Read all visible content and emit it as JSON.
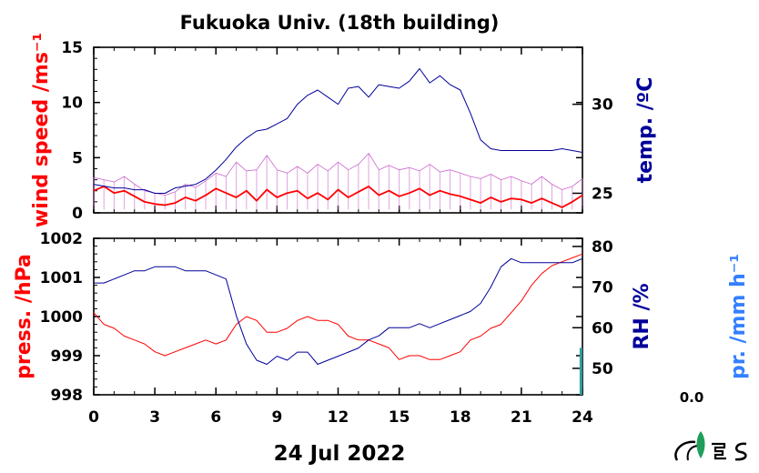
{
  "title": "Fukuoka Univ. (18th building)",
  "date_label": "24 Jul 2022",
  "pr_value": "0.0",
  "colors": {
    "wind_gust": "#cc66cc",
    "wind_mean": "#ff0000",
    "temp": "#000099",
    "press": "#ff0000",
    "rh": "#000099",
    "pr": "#3380ff",
    "rain_bar": "#2aa3a3"
  },
  "chart_data": [
    {
      "type": "line",
      "ylabel": "wind speed /ms⁻¹",
      "y2label": "temp. /ºC",
      "xlim": [
        0,
        24
      ],
      "ylim": [
        0,
        15
      ],
      "y2lim": [
        23.9,
        33.2
      ],
      "xticks": [
        "0",
        "3",
        "6",
        "9",
        "12",
        "15",
        "18",
        "21",
        "24"
      ],
      "yticks": [
        "0",
        "5",
        "10",
        "15"
      ],
      "y2ticks": [
        "25",
        "30"
      ],
      "series": [
        {
          "role": "wind_gust",
          "x": [
            0,
            0.5,
            1,
            1.5,
            2,
            2.5,
            3,
            3.5,
            4,
            4.5,
            5,
            5.5,
            6,
            6.5,
            7,
            7.5,
            8,
            8.5,
            9,
            9.5,
            10,
            10.5,
            11,
            11.5,
            12,
            12.5,
            13,
            13.5,
            14,
            14.5,
            15,
            15.5,
            16,
            16.5,
            17,
            17.5,
            18,
            18.5,
            19,
            19.5,
            20,
            20.5,
            21,
            21.5,
            22,
            22.5,
            23,
            23.5,
            24
          ],
          "values": [
            3.2,
            3.0,
            2.8,
            3.3,
            2.6,
            2.0,
            1.8,
            1.6,
            1.9,
            2.6,
            2.3,
            2.9,
            3.6,
            3.3,
            4.6,
            3.8,
            3.9,
            5.2,
            3.9,
            3.6,
            4.2,
            3.6,
            4.4,
            3.8,
            4.6,
            3.9,
            4.4,
            5.4,
            3.9,
            4.3,
            3.9,
            4.1,
            3.8,
            4.4,
            3.7,
            3.9,
            3.6,
            3.3,
            3.1,
            3.5,
            3.0,
            3.3,
            2.9,
            2.6,
            3.3,
            2.6,
            2.1,
            2.4,
            3.1
          ]
        },
        {
          "role": "wind_mean",
          "x": [
            0,
            0.5,
            1,
            1.5,
            2,
            2.5,
            3,
            3.5,
            4,
            4.5,
            5,
            5.5,
            6,
            6.5,
            7,
            7.5,
            8,
            8.5,
            9,
            9.5,
            10,
            10.5,
            11,
            11.5,
            12,
            12.5,
            13,
            13.5,
            14,
            14.5,
            15,
            15.5,
            16,
            16.5,
            17,
            17.5,
            18,
            18.5,
            19,
            19.5,
            20,
            20.5,
            21,
            21.5,
            22,
            22.5,
            23,
            23.5,
            24
          ],
          "values": [
            2.0,
            2.4,
            1.8,
            2.0,
            1.5,
            1.0,
            0.8,
            0.7,
            0.9,
            1.4,
            1.1,
            1.6,
            2.2,
            1.8,
            1.4,
            2.0,
            1.1,
            2.1,
            1.4,
            1.8,
            2.0,
            1.3,
            1.8,
            1.2,
            2.1,
            1.4,
            1.9,
            2.4,
            1.6,
            2.0,
            1.5,
            1.8,
            2.2,
            1.6,
            2.0,
            1.7,
            1.5,
            1.2,
            0.9,
            1.4,
            1.0,
            1.3,
            1.2,
            0.9,
            1.3,
            0.9,
            0.5,
            1.0,
            1.6
          ]
        },
        {
          "role": "temp",
          "axis": "right",
          "x": [
            0,
            0.5,
            1,
            1.5,
            2,
            2.5,
            3,
            3.5,
            4,
            4.5,
            5,
            5.5,
            6,
            6.5,
            7,
            7.5,
            8,
            8.5,
            9,
            9.5,
            10,
            10.5,
            11,
            11.5,
            12,
            12.5,
            13,
            13.5,
            14,
            14.5,
            15,
            15.5,
            16,
            16.5,
            17,
            17.5,
            18,
            18.5,
            19,
            19.5,
            20,
            20.5,
            21,
            21.5,
            22,
            22.5,
            23,
            23.5,
            24
          ],
          "values": [
            25.5,
            25.4,
            25.3,
            25.3,
            25.2,
            25.2,
            25.0,
            25.0,
            25.3,
            25.4,
            25.5,
            25.8,
            26.3,
            26.9,
            27.6,
            28.1,
            28.5,
            28.6,
            28.9,
            29.2,
            30.0,
            30.5,
            30.8,
            30.4,
            30.0,
            30.9,
            31.0,
            30.4,
            31.1,
            31.0,
            30.9,
            31.3,
            32.0,
            31.2,
            31.6,
            31.1,
            30.8,
            29.5,
            28.0,
            27.5,
            27.4,
            27.4,
            27.4,
            27.4,
            27.4,
            27.4,
            27.5,
            27.4,
            27.3
          ]
        }
      ]
    },
    {
      "type": "line",
      "ylabel": "press. /hPa",
      "y2label": "RH /%",
      "y3label": "pr. /mm h⁻¹",
      "xlabel": "24 Jul 2022",
      "xlim": [
        0,
        24
      ],
      "ylim": [
        998,
        1002
      ],
      "y2lim": [
        43.5,
        82
      ],
      "xticks": [
        "0",
        "3",
        "6",
        "9",
        "12",
        "15",
        "18",
        "21",
        "24"
      ],
      "yticks": [
        "998",
        "999",
        "1000",
        "1001",
        "1002"
      ],
      "y2ticks": [
        "50",
        "60",
        "70",
        "80"
      ],
      "series": [
        {
          "role": "press",
          "x": [
            0,
            0.5,
            1,
            1.5,
            2,
            2.5,
            3,
            3.5,
            4,
            4.5,
            5,
            5.5,
            6,
            6.5,
            7,
            7.5,
            8,
            8.5,
            9,
            9.5,
            10,
            10.5,
            11,
            11.5,
            12,
            12.5,
            13,
            13.5,
            14,
            14.5,
            15,
            15.5,
            16,
            16.5,
            17,
            17.5,
            18,
            18.5,
            19,
            19.5,
            20,
            20.5,
            21,
            21.5,
            22,
            22.5,
            23,
            23.5,
            24
          ],
          "values": [
            1000.1,
            999.8,
            999.7,
            999.5,
            999.4,
            999.3,
            999.1,
            999.0,
            999.1,
            999.2,
            999.3,
            999.4,
            999.3,
            999.4,
            999.8,
            1000.0,
            999.9,
            999.6,
            999.6,
            999.7,
            999.9,
            1000.0,
            999.9,
            999.9,
            999.8,
            999.5,
            999.4,
            999.4,
            999.3,
            999.2,
            998.9,
            999.0,
            999.0,
            998.9,
            998.9,
            999.0,
            999.1,
            999.4,
            999.5,
            999.7,
            999.8,
            1000.1,
            1000.4,
            1000.8,
            1001.1,
            1001.3,
            1001.4,
            1001.5,
            1001.6
          ]
        },
        {
          "role": "rh",
          "axis": "right",
          "x": [
            0,
            0.5,
            1,
            1.5,
            2,
            2.5,
            3,
            3.5,
            4,
            4.5,
            5,
            5.5,
            6,
            6.5,
            7,
            7.5,
            8,
            8.5,
            9,
            9.5,
            10,
            10.5,
            11,
            11.5,
            12,
            12.5,
            13,
            13.5,
            14,
            14.5,
            15,
            15.5,
            16,
            16.5,
            17,
            17.5,
            18,
            18.5,
            19,
            19.5,
            20,
            20.5,
            21,
            21.5,
            22,
            22.5,
            23,
            23.5,
            24
          ],
          "values": [
            71,
            71,
            72,
            73,
            74,
            74,
            75,
            75,
            75,
            74,
            74,
            74,
            73,
            72,
            63,
            56,
            52,
            51,
            53,
            52,
            54,
            54,
            51,
            52,
            53,
            54,
            55,
            57,
            58,
            60,
            60,
            60,
            61,
            60,
            61,
            62,
            63,
            64,
            66,
            70,
            75,
            77,
            76,
            76,
            76,
            76,
            76,
            76,
            77
          ]
        },
        {
          "role": "pr",
          "axis": "rain",
          "x": [
            0,
            23.95
          ],
          "values": [
            0,
            0.6
          ]
        }
      ]
    }
  ]
}
